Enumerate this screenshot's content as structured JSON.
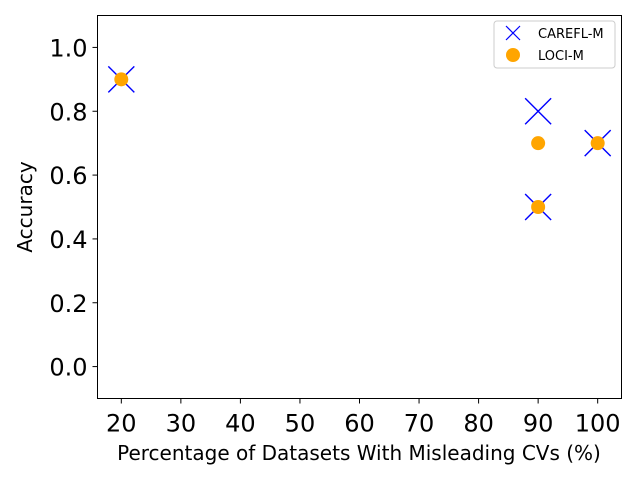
{
  "chart_data": {
    "type": "scatter",
    "title": "",
    "xlabel": "Percentage of Datasets With Misleading CVs (%)",
    "ylabel": "Accuracy",
    "xlim": [
      16,
      104
    ],
    "ylim": [
      -0.1,
      1.1
    ],
    "xticks": [
      20,
      30,
      40,
      50,
      60,
      70,
      80,
      90,
      100
    ],
    "yticks": [
      0.0,
      0.2,
      0.4,
      0.6,
      0.8,
      1.0
    ],
    "xtick_labels": [
      "20",
      "30",
      "40",
      "50",
      "60",
      "70",
      "80",
      "90",
      "100"
    ],
    "ytick_labels": [
      "0.0",
      "0.2",
      "0.4",
      "0.6",
      "0.8",
      "1.0"
    ],
    "grid": false,
    "legend_position": "top-right",
    "series": [
      {
        "name": "CAREFL-M",
        "marker": "x",
        "color": "#0000ff",
        "x": [
          20,
          90,
          90,
          100
        ],
        "y": [
          0.9,
          0.8,
          0.5,
          0.7
        ]
      },
      {
        "name": "LOCI-M",
        "marker": "circle",
        "color": "#ffa500",
        "x": [
          20,
          90,
          90,
          100
        ],
        "y": [
          0.9,
          0.7,
          0.5,
          0.7
        ]
      }
    ]
  }
}
